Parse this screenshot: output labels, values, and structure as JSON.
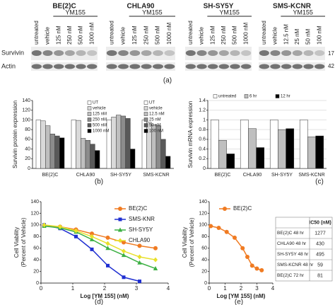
{
  "blots": {
    "groups": [
      {
        "title": "BE(2)C",
        "drug": "YM155",
        "lanes": [
          "untreated",
          "vehicle",
          "125 nM",
          "250 nM",
          "500 nM",
          "1000 nM"
        ]
      },
      {
        "title": "CHLA90",
        "drug": "YM155",
        "lanes": [
          "untreated",
          "vehicle",
          "125 nM",
          "250 nM",
          "500 nM",
          "1000 nM"
        ]
      },
      {
        "title": "SH-SY5Y",
        "drug": "YM155",
        "lanes": [
          "untreated",
          "vehicle",
          "125 nM",
          "250 nM",
          "500 nM",
          "1000 nM"
        ]
      },
      {
        "title": "SMS-KCNR",
        "drug": "YM155",
        "lanes": [
          "untreated",
          "vehicle",
          "12.5 nM",
          "25 nM",
          "50 nM",
          "100 nM"
        ]
      }
    ],
    "rows": [
      "Survivin",
      "Actin"
    ],
    "markers": [
      "17",
      "42"
    ],
    "panel": "(a)"
  },
  "chart_data": [
    {
      "type": "bar",
      "panel": "(b)",
      "ylabel": [
        "Survivin protein expression"
      ],
      "categories": [
        "BE(2)C",
        "CHLA90",
        "SH-SY5Y",
        "SMS-KCNR"
      ],
      "series": [
        {
          "name": "UT",
          "color": "#ffffff",
          "values": [
            100,
            100,
            100,
            100
          ]
        },
        {
          "name": "vehicle",
          "color": "#d9d9d9",
          "values": [
            98,
            99,
            106,
            95
          ]
        },
        {
          "name": "125 nM",
          "color": "#bfbfbf",
          "values": [
            88,
            62,
            110,
            90
          ]
        },
        {
          "name": "250 nM",
          "color": "#8c8c8c",
          "values": [
            71,
            58,
            108,
            88
          ]
        },
        {
          "name": "500 nM",
          "color": "#595959",
          "values": [
            67,
            50,
            103,
            60
          ]
        },
        {
          "name": "1000 nM",
          "color": "#000000",
          "values": [
            63,
            37,
            40,
            25
          ]
        }
      ],
      "legend_alt": [
        "UT",
        "vehicle",
        "12.5 nM",
        "25 nM",
        "50 nM",
        "100 nM"
      ],
      "ylim": [
        0,
        140
      ],
      "yticks": [
        0,
        20,
        40,
        60,
        80,
        100,
        120,
        140
      ],
      "grid": false
    },
    {
      "type": "bar",
      "panel": "(c)",
      "ylabel": [
        "Survivin mRNA expression"
      ],
      "categories": [
        "BE(2)C",
        "CHLA90",
        "SH-SY5Y",
        "SMS-KCNR"
      ],
      "series": [
        {
          "name": "untreated",
          "color": "#ffffff",
          "values": [
            1.0,
            1.0,
            1.0,
            1.0
          ]
        },
        {
          "name": "6 hr",
          "color": "#bfbfbf",
          "values": [
            0.58,
            0.82,
            0.8,
            0.65
          ]
        },
        {
          "name": "12 hr",
          "color": "#000000",
          "values": [
            0.3,
            0.43,
            0.82,
            0.67
          ]
        }
      ],
      "ylim": [
        0,
        1.4
      ],
      "yticks": [
        0,
        0.2,
        0.4,
        0.6,
        0.8,
        1,
        1.2,
        1.4
      ],
      "grid": true
    },
    {
      "type": "scatter",
      "panel": "(d)",
      "ylabel": [
        "Cell Viability",
        "(Percent of Vehicle)"
      ],
      "xlabel": "Log [YM 155] (nM)",
      "x": [
        0.1,
        0.6,
        1.1,
        1.6,
        2.1,
        2.6,
        3.1,
        3.6
      ],
      "series": [
        {
          "name": "BE(2)C",
          "color": "#f07b22",
          "marker": "circle",
          "values": [
            99,
            97,
            92,
            85,
            78,
            70,
            64,
            60
          ]
        },
        {
          "name": "SMS-KNR",
          "color": "#1f2fd1",
          "marker": "square",
          "values": [
            100,
            94,
            80,
            58,
            30,
            10,
            3,
            null
          ]
        },
        {
          "name": "SH-SY5Y",
          "color": "#3cb043",
          "marker": "triangle",
          "values": [
            98,
            95,
            88,
            75,
            60,
            48,
            35,
            25
          ]
        },
        {
          "name": "CHLA90",
          "color": "#e8e02a",
          "marker": "diamond",
          "values": [
            100,
            97,
            90,
            80,
            68,
            55,
            45,
            40
          ]
        }
      ],
      "xlim": [
        0,
        4
      ],
      "xticks": [
        0,
        1,
        2,
        3,
        4
      ],
      "ylim": [
        0,
        140
      ],
      "yticks": [
        0,
        20,
        40,
        60,
        80,
        100,
        120,
        140
      ],
      "fit_line": true,
      "legend": "upper right"
    },
    {
      "type": "scatter",
      "panel": "(e)",
      "ylabel": [
        "Cell Viability",
        "(Percent of Vehicle)"
      ],
      "xlabel": "Log [YM 155] (nM)",
      "x": [
        0.1,
        0.6,
        1.1,
        1.6,
        2.1,
        2.4,
        2.7,
        3.0,
        3.3
      ],
      "series": [
        {
          "name": "BE(2)C",
          "color": "#f07b22",
          "marker": "circle",
          "values": [
            98,
            95,
            88,
            78,
            60,
            45,
            30,
            25,
            22
          ]
        }
      ],
      "xlim": [
        0,
        4
      ],
      "xticks": [
        0,
        1,
        2,
        3,
        4
      ],
      "ylim": [
        0,
        140
      ],
      "yticks": [
        0,
        20,
        40,
        60,
        80,
        100,
        120,
        140
      ],
      "fit_line": true,
      "legend": "upper right"
    }
  ],
  "table": {
    "header": "IC50 (nM)",
    "rows": [
      [
        "BE(2)C 48 hr",
        "1277"
      ],
      [
        "CHLA90 48 hr",
        "430"
      ],
      [
        "SH-SY5Y 48 hr",
        "495"
      ],
      [
        "SMS-KCNR 48 hr",
        "59"
      ],
      [
        "BE(2)C 72 hr",
        "81"
      ]
    ]
  }
}
